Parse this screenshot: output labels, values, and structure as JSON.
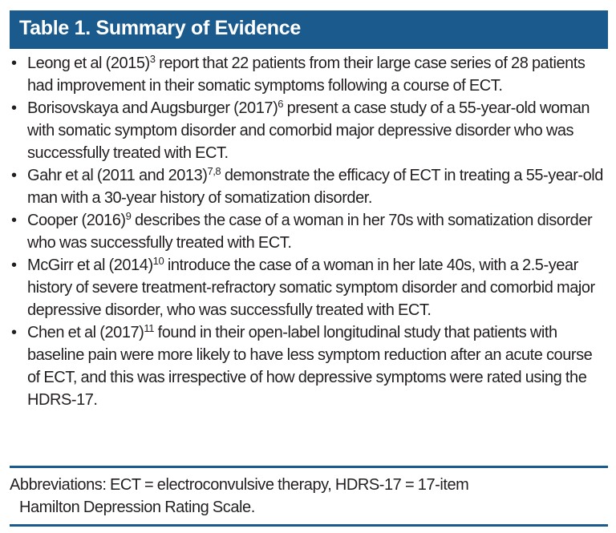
{
  "title": "Table 1. Summary of Evidence",
  "bullet_symbol": "•",
  "items": [
    {
      "lead": "Leong et al (2015)",
      "sup": "3",
      "rest": " report that 22 patients from their large case series of 28 patients had improvement in their somatic symptoms following a course of ECT."
    },
    {
      "lead": "Borisovskaya and Augsburger (2017)",
      "sup": "6",
      "rest": " present a case study of a 55-year-old woman with somatic symptom disorder and comorbid major depressive disorder who was successfully treated with ECT."
    },
    {
      "lead": "Gahr et al (2011 and 2013)",
      "sup": "7,8",
      "rest": " demonstrate the efficacy of ECT in treating a 55-year-old man with a 30-year history of somatization disorder."
    },
    {
      "lead": "Cooper (2016)",
      "sup": "9",
      "rest": " describes the case of a woman in her 70s with somatization disorder who was successfully treated with ECT."
    },
    {
      "lead": "McGirr et al (2014)",
      "sup": "10",
      "rest": " introduce the case of a woman in her late 40s, with a 2.5-year history of severe treatment-refractory somatic symptom disorder and comorbid major depressive disorder, who was successfully treated with ECT."
    },
    {
      "lead": "Chen et al (2017)",
      "sup": "11",
      "rest": " found in their open-label longitudinal study that patients with baseline pain were more likely to have less symptom reduction after an acute course of ECT, and this was irrespective of how depressive symptoms were rated using the HDRS-17."
    }
  ],
  "abbreviations": {
    "line1": "Abbreviations: ECT = electroconvulsive therapy, HDRS-17 = 17-item",
    "line2": "Hamilton Depression Rating Scale."
  },
  "colors": {
    "accent": "#1b5a8c"
  }
}
